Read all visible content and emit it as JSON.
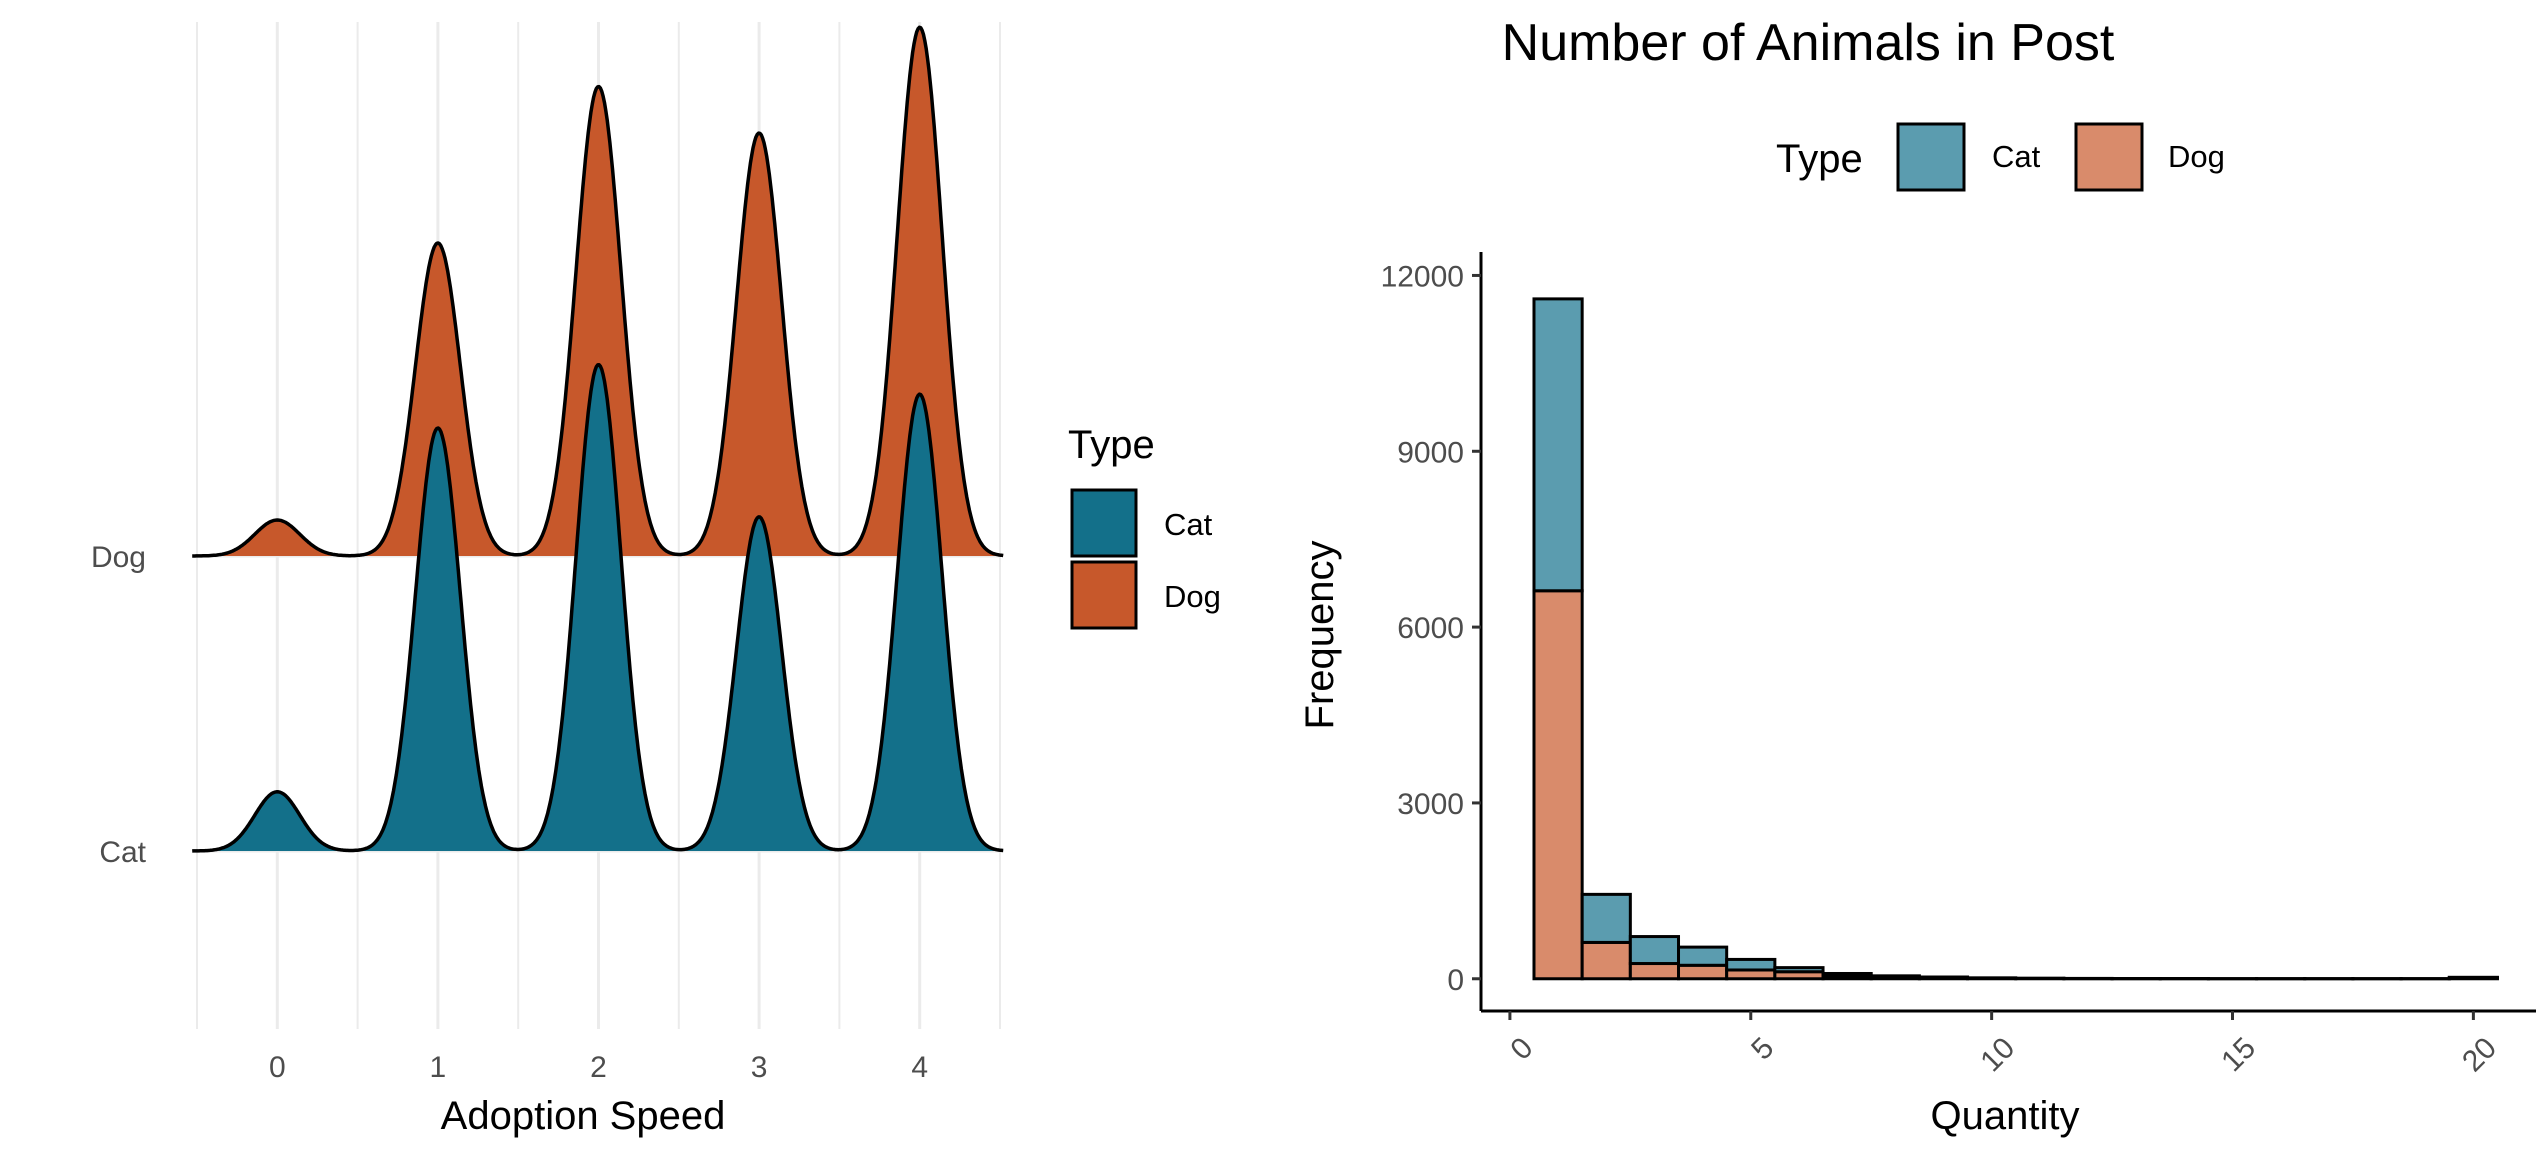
{
  "chart_data": [
    {
      "type": "area",
      "subtype": "ridgeline-density",
      "title": "",
      "xlabel": "Adoption Speed",
      "ylabel": "",
      "x_ticks": [
        "0",
        "1",
        "2",
        "3",
        "4"
      ],
      "xlim": [
        -0.5,
        4.5
      ],
      "y_categories": [
        "Dog",
        "Cat"
      ],
      "grid": "vertical",
      "colors": {
        "Cat": "#13708a",
        "Dog": "#c7582b"
      },
      "legend": {
        "title": "Type",
        "position": "right",
        "entries": [
          "Cat",
          "Dog"
        ]
      },
      "series": [
        {
          "name": "Cat",
          "peaks": [
            {
              "x": 0,
              "height": 0.14
            },
            {
              "x": 1,
              "height": 1.0
            },
            {
              "x": 2,
              "height": 1.15
            },
            {
              "x": 3,
              "height": 0.79
            },
            {
              "x": 4,
              "height": 1.08
            }
          ]
        },
        {
          "name": "Dog",
          "peaks": [
            {
              "x": 0,
              "height": 0.085
            },
            {
              "x": 1,
              "height": 0.74
            },
            {
              "x": 2,
              "height": 1.11
            },
            {
              "x": 3,
              "height": 1.0
            },
            {
              "x": 4,
              "height": 1.25
            }
          ]
        }
      ]
    },
    {
      "type": "bar",
      "subtype": "stacked-histogram",
      "title": "Number of Animals in Post",
      "xlabel": "Quantity",
      "ylabel": "Frequency",
      "x_ticks": [
        "0",
        "5",
        "10",
        "15",
        "20"
      ],
      "y_ticks": [
        "0",
        "3000",
        "6000",
        "9000",
        "12000"
      ],
      "xlim": [
        -0.6,
        21.3
      ],
      "ylim": [
        -550,
        12400
      ],
      "grid": "off",
      "colors": {
        "Cat": "#5b9caf",
        "Dog": "#d98b6b"
      },
      "legend": {
        "title": "Type",
        "position": "top",
        "entries": [
          "Cat",
          "Dog"
        ]
      },
      "bins": [
        1,
        2,
        3,
        4,
        5,
        6,
        7,
        8,
        9,
        10,
        11,
        12,
        13,
        14,
        15,
        16,
        17,
        18,
        19,
        20
      ],
      "series": [
        {
          "name": "Dog",
          "values": [
            6620,
            620,
            260,
            230,
            150,
            120,
            50,
            25,
            15,
            8,
            5,
            3,
            2,
            2,
            1,
            1,
            1,
            1,
            1,
            15
          ]
        },
        {
          "name": "Cat",
          "values": [
            4980,
            820,
            460,
            310,
            180,
            70,
            40,
            25,
            15,
            8,
            5,
            3,
            2,
            2,
            1,
            1,
            1,
            1,
            1,
            10
          ]
        }
      ]
    }
  ]
}
